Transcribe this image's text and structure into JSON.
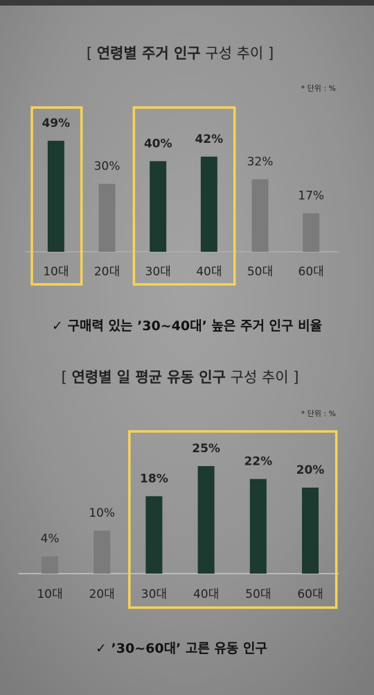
{
  "chart_data": [
    {
      "type": "bar",
      "title": {
        "open": "[",
        "bold": "연령별 주거 인구",
        "regular": "구성 추이",
        "close": "]"
      },
      "unit_note": "* 단위 : %",
      "categories": [
        "10대",
        "20대",
        "30대",
        "40대",
        "50대",
        "60대"
      ],
      "values": [
        49,
        30,
        40,
        42,
        32,
        17
      ],
      "value_labels": [
        "49%",
        "30%",
        "40%",
        "42%",
        "32%",
        "17%"
      ],
      "colors": [
        "#1c3a2f",
        "#7b7b7b",
        "#1c3a2f",
        "#1c3a2f",
        "#7b7b7b",
        "#7b7b7b"
      ],
      "highlight": [
        [
          0,
          0
        ],
        [
          2,
          3
        ]
      ],
      "highlight_color": "#f7d25a",
      "ylim": [
        0,
        60
      ],
      "annotation": {
        "check": "✓",
        "text": "구매력 있는 ’30~40대’ 높은 주거 인구 비율"
      }
    },
    {
      "type": "bar",
      "title": {
        "open": "[",
        "bold": "연령별 일 평균 유동 인구",
        "regular": "구성 추이",
        "close": "]"
      },
      "unit_note": "* 단위 : %",
      "categories": [
        "10대",
        "20대",
        "30대",
        "40대",
        "50대",
        "60대"
      ],
      "values": [
        4,
        10,
        18,
        25,
        22,
        20
      ],
      "value_labels": [
        "4%",
        "10%",
        "18%",
        "25%",
        "22%",
        "20%"
      ],
      "colors": [
        "#7b7b7b",
        "#7b7b7b",
        "#1c3a2f",
        "#1c3a2f",
        "#1c3a2f",
        "#1c3a2f"
      ],
      "highlight": [
        [
          2,
          5
        ]
      ],
      "highlight_color": "#f7d25a",
      "ylim": [
        0,
        30
      ],
      "annotation": {
        "check": "✓",
        "text": "’30~60대’ 고른 유동 인구"
      }
    }
  ]
}
